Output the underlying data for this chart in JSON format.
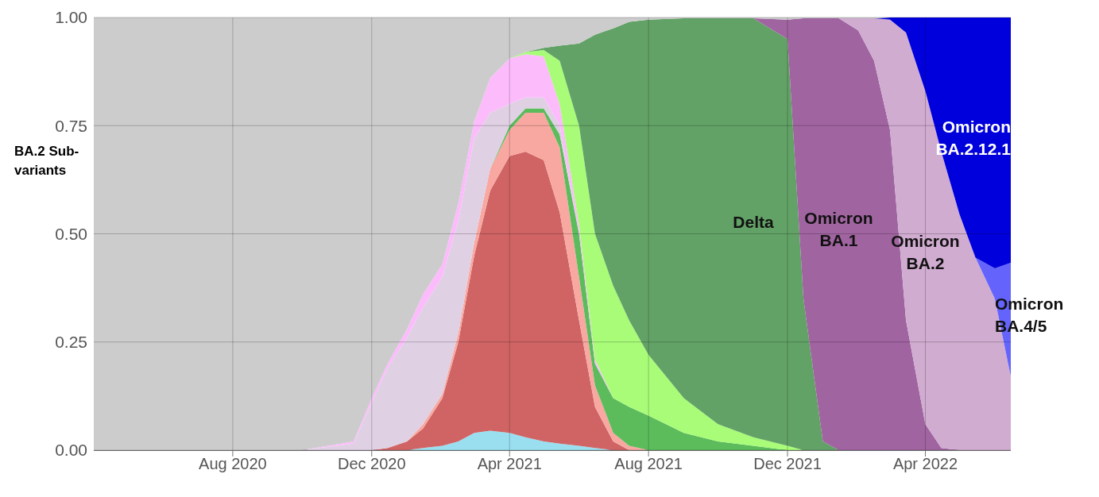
{
  "chart_data": {
    "type": "area",
    "stacked": true,
    "ylabel": "BA.2 Sub-variants",
    "grid": true,
    "x": [
      "2020-04-01",
      "2020-10-01",
      "2020-11-15",
      "2020-12-01",
      "2020-12-15",
      "2021-01-01",
      "2021-01-15",
      "2021-02-01",
      "2021-02-15",
      "2021-03-01",
      "2021-03-15",
      "2021-04-01",
      "2021-04-15",
      "2021-05-01",
      "2021-05-15",
      "2021-06-01",
      "2021-06-15",
      "2021-07-01",
      "2021-07-15",
      "2021-08-01",
      "2021-09-01",
      "2021-10-01",
      "2021-11-01",
      "2021-12-01",
      "2021-12-15",
      "2022-01-01",
      "2022-01-15",
      "2022-02-01",
      "2022-02-15",
      "2022-03-01",
      "2022-03-15",
      "2022-04-01",
      "2022-04-15",
      "2022-05-01",
      "2022-05-15",
      "2022-06-01",
      "2022-06-15"
    ],
    "xlim": [
      "2020-04-01",
      "2022-06-15"
    ],
    "xticks": [
      {
        "value": "2020-08-01",
        "label": "Aug 2020"
      },
      {
        "value": "2020-12-01",
        "label": "Dec 2020"
      },
      {
        "value": "2021-04-01",
        "label": "Apr 2021"
      },
      {
        "value": "2021-08-01",
        "label": "Aug 2021"
      },
      {
        "value": "2021-12-01",
        "label": "Dec 2021"
      },
      {
        "value": "2022-04-01",
        "label": "Apr 2022"
      }
    ],
    "ylim": [
      0,
      1
    ],
    "yticks": [
      {
        "value": 0,
        "label": "0.00"
      },
      {
        "value": 0.25,
        "label": "0.25"
      },
      {
        "value": 0.5,
        "label": "0.50"
      },
      {
        "value": 0.75,
        "label": "0.75"
      },
      {
        "value": 1,
        "label": "1.00"
      }
    ],
    "series": [
      {
        "color": "#9adff0",
        "values": [
          null,
          null,
          null,
          null,
          null,
          0,
          0.005,
          0.01,
          0.02,
          0.04,
          0.045,
          0.04,
          0.03,
          0.02,
          0.015,
          0.01,
          0.005,
          0,
          null,
          null,
          null,
          null,
          null,
          null,
          null,
          null,
          null,
          null,
          null,
          null,
          null,
          null,
          null,
          null,
          null,
          null,
          null
        ]
      },
      {
        "color": "#d06464",
        "values": [
          null,
          null,
          null,
          0,
          0.005,
          0.02,
          0.045,
          0.11,
          0.23,
          0.41,
          0.555,
          0.64,
          0.66,
          0.65,
          0.535,
          0.29,
          0.095,
          0.02,
          0,
          null,
          null,
          null,
          null,
          null,
          null,
          null,
          null,
          null,
          null,
          null,
          null,
          null,
          null,
          null,
          null,
          null,
          null
        ]
      },
      {
        "color": "#f8a8a0",
        "values": [
          null,
          null,
          null,
          null,
          null,
          0,
          0.01,
          0.01,
          0.02,
          0.03,
          0.05,
          0.06,
          0.09,
          0.11,
          0.15,
          0.1,
          0.05,
          0.02,
          0.01,
          0,
          null,
          null,
          null,
          null,
          null,
          null,
          null,
          null,
          null,
          null,
          null,
          null,
          null,
          null,
          null,
          null,
          null
        ]
      },
      {
        "color": "#5cbc5c",
        "values": [
          null,
          null,
          null,
          null,
          null,
          null,
          null,
          null,
          null,
          null,
          0,
          0.01,
          0.01,
          0.01,
          0.03,
          0.1,
          0.05,
          0.08,
          0.09,
          0.08,
          0.04,
          0.02,
          0.01,
          0,
          null,
          null,
          null,
          null,
          null,
          null,
          null,
          null,
          null,
          null,
          null,
          null,
          null
        ]
      },
      {
        "color": "#e0d0e4",
        "values": [
          null,
          0,
          0.015,
          0.11,
          0.185,
          0.24,
          0.27,
          0.27,
          0.26,
          0.24,
          0.13,
          0.05,
          0.025,
          0.025,
          0.02,
          0,
          null,
          null,
          null,
          null,
          null,
          null,
          null,
          null,
          null,
          null,
          null,
          null,
          null,
          null,
          null,
          null,
          null,
          null,
          null,
          null,
          null
        ]
      },
      {
        "color": "#fcbcfc",
        "values": [
          null,
          0,
          0.005,
          0.01,
          0.01,
          0.02,
          0.03,
          0.03,
          0.04,
          0.04,
          0.08,
          0.105,
          0.1,
          0.095,
          0.05,
          0.02,
          0.01,
          0,
          null,
          null,
          null,
          null,
          null,
          null,
          null,
          null,
          null,
          null,
          null,
          null,
          null,
          null,
          null,
          null,
          null,
          null,
          null
        ]
      },
      {
        "color": "#a8fc78",
        "values": [
          null,
          null,
          null,
          null,
          null,
          null,
          null,
          null,
          null,
          null,
          null,
          0,
          0.005,
          0.015,
          0.1,
          0.23,
          0.29,
          0.26,
          0.2,
          0.14,
          0.08,
          0.04,
          0.02,
          0.01,
          0,
          null,
          null,
          null,
          null,
          null,
          null,
          null,
          null,
          null,
          null,
          null,
          null
        ]
      },
      {
        "name": "Delta",
        "color": "#62a266",
        "values": [
          null,
          null,
          null,
          null,
          null,
          null,
          null,
          null,
          null,
          null,
          null,
          null,
          0,
          0.005,
          0.035,
          0.19,
          0.46,
          0.595,
          0.69,
          0.775,
          0.878,
          0.938,
          0.968,
          0.94,
          0.35,
          0.02,
          0,
          null,
          null,
          null,
          null,
          null,
          null,
          null,
          null,
          null,
          null
        ]
      },
      {
        "name": "Omicron BA.1",
        "color": "#a064a0",
        "values": [
          null,
          null,
          null,
          null,
          null,
          null,
          null,
          null,
          null,
          null,
          null,
          null,
          null,
          null,
          null,
          null,
          null,
          null,
          null,
          null,
          null,
          null,
          0,
          0.045,
          0.648,
          0.978,
          0.998,
          0.97,
          0.9,
          0.74,
          0.3,
          0.06,
          0.005,
          0,
          null,
          null,
          null
        ]
      },
      {
        "name": "Omicron BA.2",
        "color": "#d0acd0",
        "values": [
          null,
          null,
          null,
          null,
          null,
          null,
          null,
          null,
          null,
          null,
          null,
          null,
          null,
          null,
          null,
          null,
          null,
          null,
          null,
          null,
          null,
          null,
          null,
          null,
          null,
          null,
          0,
          0.028,
          0.098,
          0.255,
          0.665,
          0.77,
          0.685,
          0.545,
          0.445,
          0.35,
          0.17
        ]
      },
      {
        "name": "Omicron BA.4/5",
        "color": "#6464fc",
        "values": [
          null,
          null,
          null,
          null,
          null,
          null,
          null,
          null,
          null,
          null,
          null,
          null,
          null,
          null,
          null,
          null,
          null,
          null,
          null,
          null,
          null,
          null,
          null,
          null,
          null,
          null,
          null,
          null,
          null,
          null,
          null,
          null,
          null,
          null,
          0,
          0.07,
          0.263
        ]
      },
      {
        "name": "Omicron BA.2.12.1",
        "color": "#0000dc",
        "values": [
          null,
          null,
          null,
          null,
          null,
          null,
          null,
          null,
          null,
          null,
          null,
          null,
          null,
          null,
          null,
          null,
          null,
          null,
          null,
          null,
          null,
          null,
          null,
          null,
          null,
          null,
          null,
          null,
          0,
          0.005,
          0.035,
          0.17,
          0.31,
          0.455,
          0.555,
          0.58,
          0.567
        ]
      },
      {
        "color": "#cccccc",
        "values": [
          1,
          1,
          0.98,
          0.88,
          0.8,
          0.72,
          0.64,
          0.57,
          0.43,
          0.24,
          0.14,
          0.095,
          0.08,
          0.07,
          0.065,
          0.06,
          0.04,
          0.025,
          0.01,
          0.005,
          0.002,
          0.002,
          0.002,
          0.005,
          0.002,
          0.002,
          0.002,
          0.002,
          0.002,
          0,
          null,
          null,
          null,
          null,
          null,
          null,
          null
        ]
      }
    ]
  }
}
